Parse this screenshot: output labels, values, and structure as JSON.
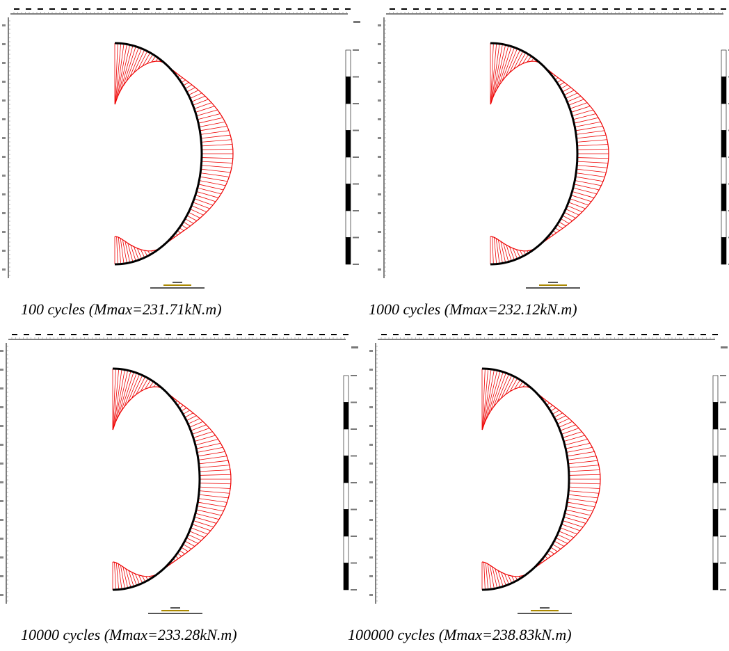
{
  "panels": [
    {
      "caption": "100 cycles (Mmax=231.71kN.m)"
    },
    {
      "caption": "1000 cycles (Mmax=232.12kN.m)"
    },
    {
      "caption": "10000 cycles (Mmax=233.28kN.m)"
    },
    {
      "caption": "100000 cycles (Mmax=238.83kN.m)"
    }
  ]
}
